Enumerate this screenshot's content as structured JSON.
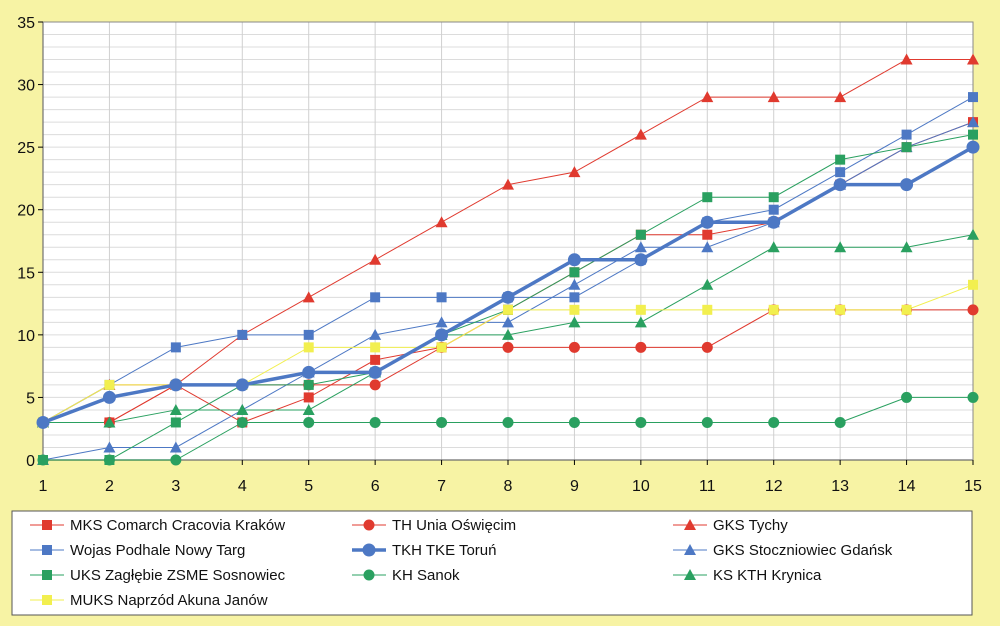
{
  "colors": {
    "background": "#f7f3a4",
    "plot_background": "#ffffff",
    "grid": "#c8c8c8",
    "axis": "#000000",
    "red": "#e03a2f",
    "blue": "#4d78c4",
    "green": "#2aa060",
    "yellow": "#f2ef4f",
    "dark": "#222222"
  },
  "chart_data": {
    "type": "line",
    "title": "",
    "xlabel": "",
    "ylabel": "",
    "x": [
      1,
      2,
      3,
      4,
      5,
      6,
      7,
      8,
      9,
      10,
      11,
      12,
      13,
      14,
      15
    ],
    "xlim": [
      1,
      15
    ],
    "ylim": [
      0,
      35
    ],
    "yticks": [
      0,
      5,
      10,
      15,
      20,
      25,
      30,
      35
    ],
    "grid": true,
    "legend_position": "bottom",
    "series": [
      {
        "name": "MKS Comarch Cracovia Kraków",
        "color": "#e03a2f",
        "marker": "square",
        "values": [
          3,
          3,
          6,
          3,
          5,
          8,
          9,
          12,
          15,
          18,
          18,
          19,
          22,
          25,
          27
        ]
      },
      {
        "name": "TH Unia Oświęcim",
        "color": "#e03a2f",
        "marker": "circle",
        "values": [
          3,
          3,
          6,
          6,
          6,
          6,
          9,
          9,
          9,
          9,
          9,
          12,
          12,
          12,
          12
        ]
      },
      {
        "name": "GKS Tychy",
        "color": "#e03a2f",
        "marker": "triangle",
        "values": [
          3,
          6,
          6,
          10,
          13,
          16,
          19,
          22,
          23,
          26,
          29,
          29,
          29,
          32,
          32
        ]
      },
      {
        "name": "Wojas Podhale Nowy Targ",
        "color": "#4d78c4",
        "marker": "square",
        "values": [
          3,
          6,
          9,
          10,
          10,
          13,
          13,
          13,
          13,
          16,
          19,
          20,
          23,
          26,
          29
        ]
      },
      {
        "name": "TKH TKE Toruń",
        "color": "#4d78c4",
        "marker": "circle",
        "thick": true,
        "values": [
          3,
          5,
          6,
          6,
          7,
          7,
          10,
          13,
          16,
          16,
          19,
          19,
          22,
          22,
          25
        ]
      },
      {
        "name": "GKS Stoczniowiec Gdańsk",
        "color": "#4d78c4",
        "marker": "triangle",
        "values": [
          0,
          1,
          1,
          4,
          7,
          10,
          11,
          11,
          14,
          17,
          17,
          19,
          22,
          25,
          27
        ]
      },
      {
        "name": "UKS Zagłębie ZSME Sosnowiec",
        "color": "#2aa060",
        "marker": "square",
        "values": [
          0,
          0,
          3,
          6,
          6,
          7,
          10,
          12,
          15,
          18,
          21,
          21,
          24,
          25,
          26
        ]
      },
      {
        "name": "KH Sanok",
        "color": "#2aa060",
        "marker": "circle",
        "values": [
          0,
          0,
          0,
          3,
          3,
          3,
          3,
          3,
          3,
          3,
          3,
          3,
          3,
          5,
          5
        ]
      },
      {
        "name": "KS KTH Krynica",
        "color": "#2aa060",
        "marker": "triangle",
        "values": [
          3,
          3,
          4,
          4,
          4,
          7,
          10,
          10,
          11,
          11,
          14,
          17,
          17,
          17,
          18
        ]
      },
      {
        "name": "MUKS Naprzód Akuna Janów",
        "color": "#f2ef4f",
        "marker": "square",
        "values": [
          3,
          6,
          6,
          6,
          9,
          9,
          9,
          12,
          12,
          12,
          12,
          12,
          12,
          12,
          14
        ]
      }
    ]
  }
}
